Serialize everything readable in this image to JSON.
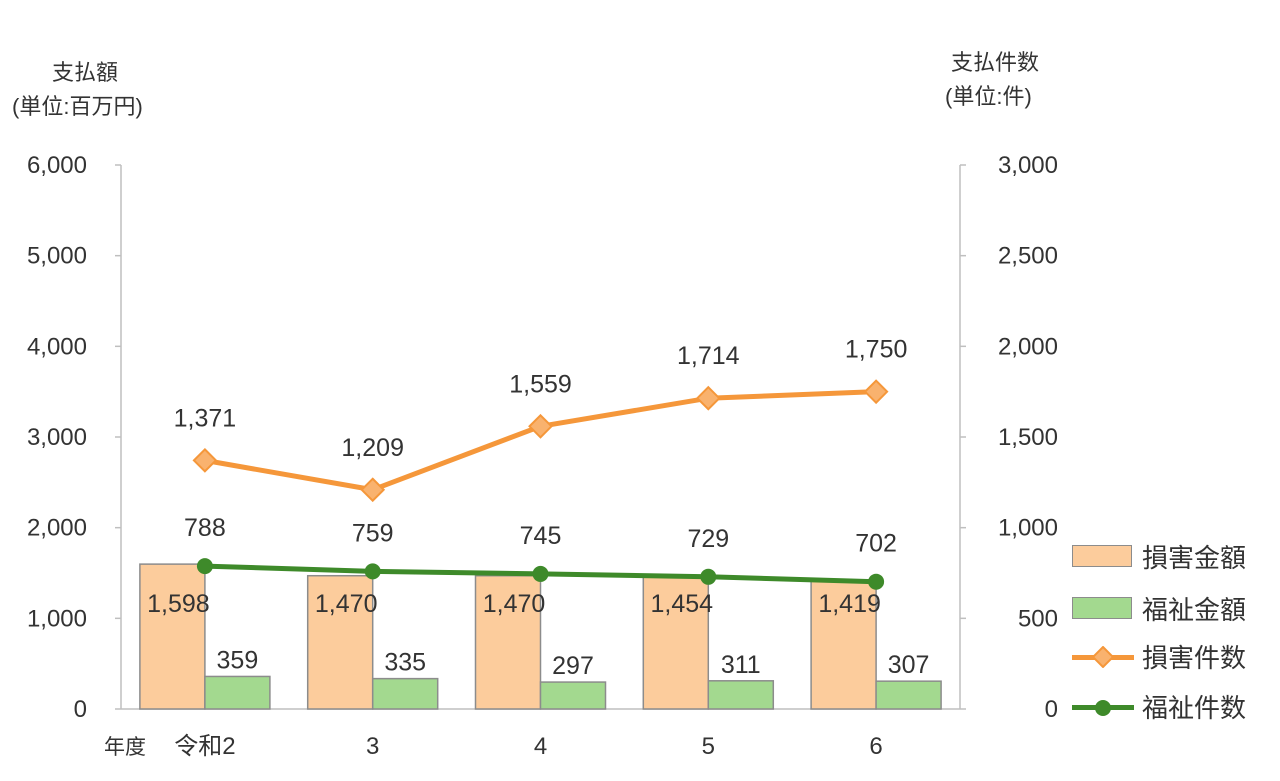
{
  "left_axis_title": [
    "支払額",
    "(単位:百万円)"
  ],
  "right_axis_title": [
    "支払件数",
    "(単位:件)"
  ],
  "x_axis_prefix": "年度",
  "colors": {
    "damage_amount_fill": "#fccc9c",
    "damage_amount_stroke": "#8c8c8c",
    "welfare_amount_fill": "#a3d98f",
    "welfare_amount_stroke": "#8c8c8c",
    "damage_count_line": "#f5973a",
    "damage_count_marker": "#f9b26e",
    "welfare_count_line": "#3e8a2a",
    "axis": "#bfbfbf",
    "text": "#333333"
  },
  "legend": [
    {
      "label": "損害金額",
      "kind": "bar",
      "series": "damage_amount"
    },
    {
      "label": "福祉金額",
      "kind": "bar",
      "series": "welfare_amount"
    },
    {
      "label": "損害件数",
      "kind": "line-diamond",
      "series": "damage_count"
    },
    {
      "label": "福祉件数",
      "kind": "line-circle",
      "series": "welfare_count"
    }
  ],
  "chart_data": {
    "type": "bar",
    "categories": [
      "令和2",
      "3",
      "4",
      "5",
      "6"
    ],
    "left_axis": {
      "ticks": [
        "0",
        "1,000",
        "2,000",
        "3,000",
        "4,000",
        "5,000",
        "6,000"
      ],
      "ylim": [
        0,
        6000
      ]
    },
    "right_axis": {
      "ticks": [
        "0",
        "500",
        "1,000",
        "1,500",
        "2,000",
        "2,500",
        "3,000"
      ],
      "ylim": [
        0,
        3000
      ]
    },
    "series": [
      {
        "name": "損害金額",
        "type": "bar",
        "axis": "left",
        "values": [
          1598,
          1470,
          1470,
          1454,
          1419
        ],
        "labels": [
          "1,598",
          "1,470",
          "1,470",
          "1,454",
          "1,419"
        ]
      },
      {
        "name": "福祉金額",
        "type": "bar",
        "axis": "left",
        "values": [
          359,
          335,
          297,
          311,
          307
        ],
        "labels": [
          "359",
          "335",
          "297",
          "311",
          "307"
        ]
      },
      {
        "name": "損害件数",
        "type": "line",
        "marker": "diamond",
        "axis": "right",
        "values": [
          1371,
          1209,
          1559,
          1714,
          1750
        ],
        "labels": [
          "1,371",
          "1,209",
          "1,559",
          "1,714",
          "1,750"
        ]
      },
      {
        "name": "福祉件数",
        "type": "line",
        "marker": "circle",
        "axis": "right",
        "values": [
          788,
          759,
          745,
          729,
          702
        ],
        "labels": [
          "788",
          "759",
          "745",
          "729",
          "702"
        ]
      }
    ],
    "grid": false,
    "legend_position": "right"
  }
}
